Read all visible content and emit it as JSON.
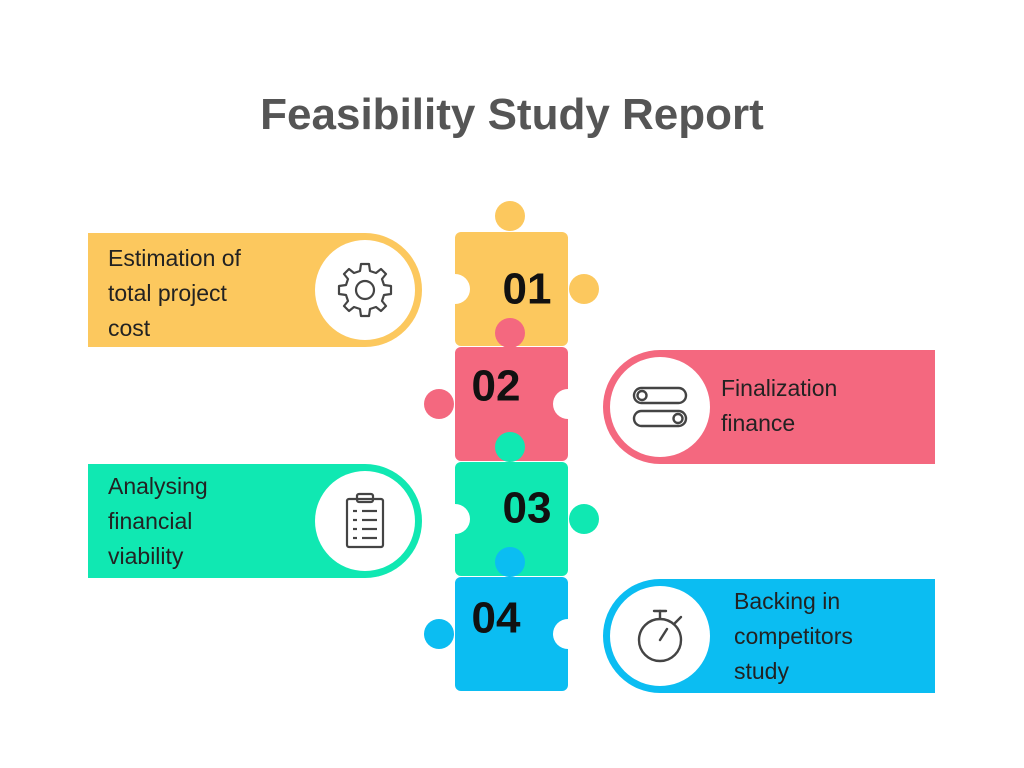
{
  "title": "Feasibility Study Report",
  "colors": {
    "yellow": "#FCC85E",
    "red": "#F4687F",
    "teal": "#10E8B2",
    "blue": "#0BBDF2",
    "icon_stroke": "#444444"
  },
  "steps": [
    {
      "number": "01",
      "lines": [
        "Estimation of",
        "total project",
        "cost"
      ],
      "icon": "gear-icon",
      "color": "yellow",
      "side": "left"
    },
    {
      "number": "02",
      "lines": [
        "Finalization",
        "finance"
      ],
      "icon": "toggle-switches-icon",
      "color": "red",
      "side": "right"
    },
    {
      "number": "03",
      "lines": [
        "Analysing",
        "financial",
        "viability"
      ],
      "icon": "clipboard-checklist-icon",
      "color": "teal",
      "side": "left"
    },
    {
      "number": "04",
      "lines": [
        "Backing in",
        "competitors",
        "study"
      ],
      "icon": "stopwatch-icon",
      "color": "blue",
      "side": "right"
    }
  ]
}
